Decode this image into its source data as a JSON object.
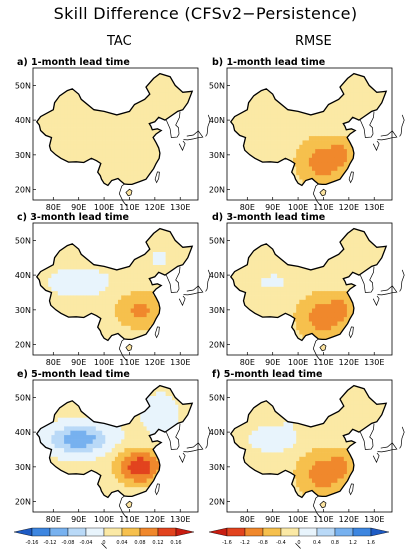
{
  "figure_title": "Skill Difference (CFSv2−Persistence)",
  "columns": [
    "TAC",
    "RMSE"
  ],
  "panels": [
    {
      "id": "a",
      "title": "a) 1-month lead time",
      "metric": "TAC",
      "lead_months": 1
    },
    {
      "id": "b",
      "title": "b) 1-month lead time",
      "metric": "RMSE",
      "lead_months": 1
    },
    {
      "id": "c",
      "title": "c) 3-month lead time",
      "metric": "TAC",
      "lead_months": 3
    },
    {
      "id": "d",
      "title": "d) 3-month lead time",
      "metric": "RMSE",
      "lead_months": 3
    },
    {
      "id": "e",
      "title": "e) 5-month lead time",
      "metric": "TAC",
      "lead_months": 5
    },
    {
      "id": "f",
      "title": "f) 5-month lead time",
      "metric": "RMSE",
      "lead_months": 5
    }
  ],
  "axes": {
    "lon_ticks": [
      "80E",
      "90E",
      "100E",
      "110E",
      "120E",
      "130E"
    ],
    "lat_ticks": [
      "50N",
      "40N",
      "30N",
      "20N"
    ]
  },
  "colorbars": [
    {
      "metric": "TAC",
      "labels": [
        "-0.16",
        "-0.12",
        "-0.08",
        "-0.04",
        "0",
        "0.04",
        "0.08",
        "0.12",
        "0.16"
      ],
      "colors": [
        "#1e5bc4",
        "#3d86e0",
        "#77b1ef",
        "#b9d9f7",
        "#e8f4fc",
        "#fbe9a5",
        "#f6c04d",
        "#f0882c",
        "#e2431e",
        "#c81d11"
      ]
    },
    {
      "metric": "RMSE",
      "labels": [
        "-1.6",
        "-1.2",
        "-0.8",
        "-0.4",
        "0",
        "0.4",
        "0.8",
        "1.2",
        "1.6"
      ],
      "colors": [
        "#c81d11",
        "#e2431e",
        "#f0882c",
        "#f6c04d",
        "#fbe9a5",
        "#e8f4fc",
        "#b9d9f7",
        "#77b1ef",
        "#3d86e0",
        "#1e5bc4"
      ]
    }
  ],
  "colors": {
    "land_base": "#fbe3a0",
    "ocean": "#ffffff",
    "coast": "#000000"
  }
}
